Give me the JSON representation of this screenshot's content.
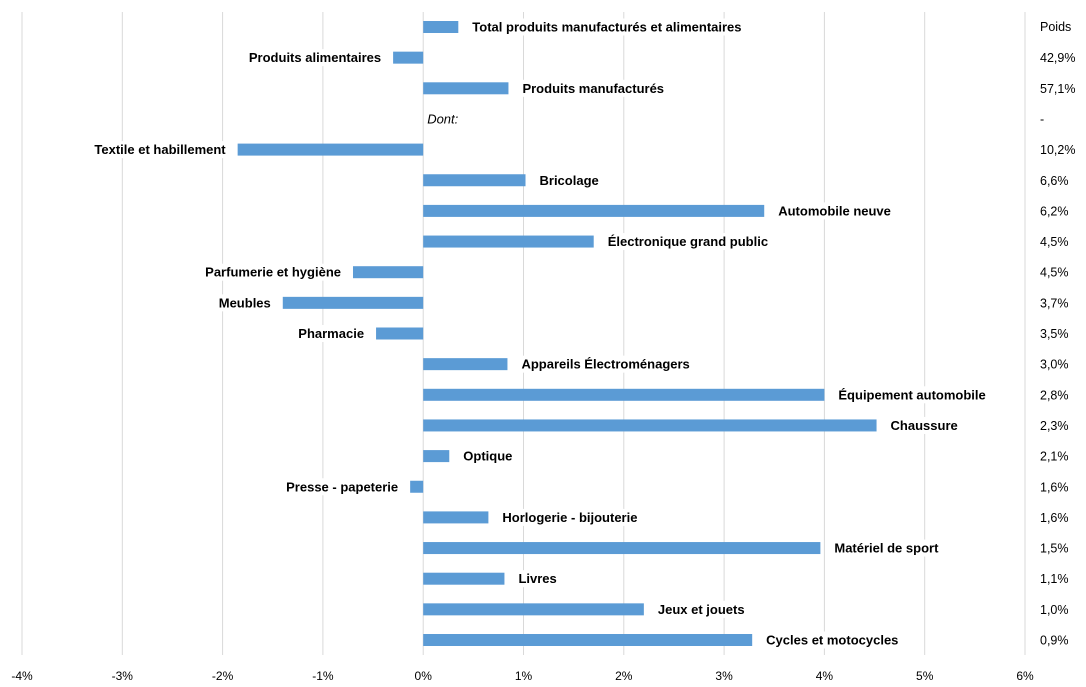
{
  "chart_data": {
    "type": "bar",
    "orientation": "horizontal",
    "title": "",
    "xlabel": "",
    "ylabel": "",
    "xlim": [
      -4,
      6
    ],
    "x_ticks": [
      "-4%",
      "-3%",
      "-2%",
      "-1%",
      "0%",
      "1%",
      "2%",
      "3%",
      "4%",
      "5%",
      "6%"
    ],
    "grid": "vertical",
    "bar_color": "#5b9bd5",
    "weight_header": "Poids",
    "categories": [
      "Total produits manufacturés et alimentaires",
      "Produits alimentaires",
      "Produits manufacturés",
      "Dont:",
      "Textile et habillement",
      "Bricolage",
      "Automobile neuve",
      "Électronique grand public",
      "Parfumerie et hygiène",
      "Meubles",
      "Pharmacie",
      "Appareils Électroménagers",
      "Équipement automobile",
      "Chaussure",
      "Optique",
      "Presse - papeterie",
      "Horlogerie - bijouterie",
      "Matériel de sport",
      "Livres",
      "Jeux et jouets",
      "Cycles et motocycles"
    ],
    "values": [
      0.35,
      -0.3,
      0.85,
      null,
      -1.85,
      1.02,
      3.4,
      1.7,
      -0.7,
      -1.4,
      -0.47,
      0.84,
      4.0,
      4.52,
      0.26,
      -0.13,
      0.65,
      3.96,
      0.81,
      2.2,
      3.28
    ],
    "weights": [
      "",
      "42,9%",
      "57,1%",
      "-",
      "10,2%",
      "6,6%",
      "6,2%",
      "4,5%",
      "4,5%",
      "3,7%",
      "3,5%",
      "3,0%",
      "2,8%",
      "2,3%",
      "2,1%",
      "1,6%",
      "1,6%",
      "1,5%",
      "1,1%",
      "1,0%",
      "0,9%"
    ]
  }
}
